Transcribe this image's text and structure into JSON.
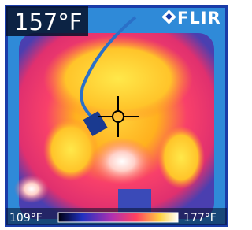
{
  "reading": "157°F",
  "brand": "FLIR",
  "scale": {
    "min": "109°F",
    "max": "177°F"
  }
}
